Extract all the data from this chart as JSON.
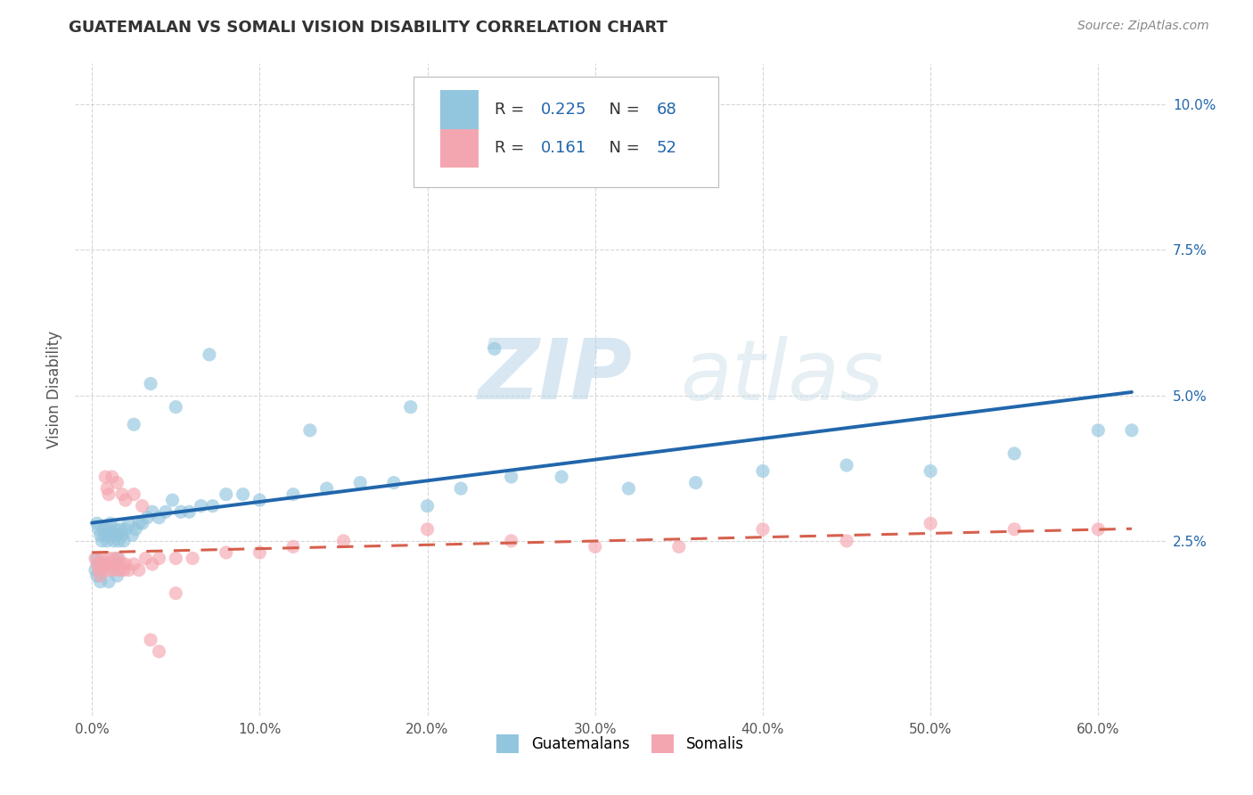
{
  "title": "GUATEMALAN VS SOMALI VISION DISABILITY CORRELATION CHART",
  "source": "Source: ZipAtlas.com",
  "ylabel": "Vision Disability",
  "xlim": [
    0.0,
    0.62
  ],
  "ylim": [
    -0.005,
    0.107
  ],
  "xtick_vals": [
    0.0,
    0.1,
    0.2,
    0.3,
    0.4,
    0.5,
    0.6
  ],
  "ytick_vals": [
    0.025,
    0.05,
    0.075,
    0.1
  ],
  "blue_color": "#92c5de",
  "pink_color": "#f4a6b0",
  "blue_line_color": "#2166ac",
  "pink_line_color": "#d6604d",
  "R_blue": "0.225",
  "N_blue": "68",
  "R_pink": "0.161",
  "N_pink": "52",
  "stat_color": "#2166ac",
  "watermark_zip": "ZIP",
  "watermark_atlas": "atlas",
  "title_fontsize": 13,
  "source_fontsize": 10,
  "tick_fontsize": 11,
  "legend_fontsize": 13,
  "gx": [
    0.003,
    0.004,
    0.005,
    0.006,
    0.007,
    0.008,
    0.009,
    0.01,
    0.011,
    0.012,
    0.013,
    0.014,
    0.015,
    0.016,
    0.017,
    0.018,
    0.019,
    0.02,
    0.022,
    0.024,
    0.026,
    0.028,
    0.03,
    0.033,
    0.036,
    0.04,
    0.044,
    0.048,
    0.053,
    0.058,
    0.065,
    0.072,
    0.08,
    0.09,
    0.1,
    0.12,
    0.14,
    0.16,
    0.18,
    0.2,
    0.22,
    0.25,
    0.28,
    0.32,
    0.36,
    0.4,
    0.45,
    0.5,
    0.55,
    0.6,
    0.62,
    0.24,
    0.19,
    0.13,
    0.07,
    0.05,
    0.035,
    0.025,
    0.015,
    0.008,
    0.006,
    0.004,
    0.003,
    0.002,
    0.003,
    0.005,
    0.01,
    0.015
  ],
  "gy": [
    0.028,
    0.027,
    0.026,
    0.025,
    0.027,
    0.026,
    0.025,
    0.027,
    0.028,
    0.026,
    0.025,
    0.027,
    0.026,
    0.025,
    0.027,
    0.026,
    0.025,
    0.027,
    0.028,
    0.026,
    0.027,
    0.028,
    0.028,
    0.029,
    0.03,
    0.029,
    0.03,
    0.032,
    0.03,
    0.03,
    0.031,
    0.031,
    0.033,
    0.033,
    0.032,
    0.033,
    0.034,
    0.035,
    0.035,
    0.031,
    0.034,
    0.036,
    0.036,
    0.034,
    0.035,
    0.037,
    0.038,
    0.037,
    0.04,
    0.044,
    0.044,
    0.058,
    0.048,
    0.044,
    0.057,
    0.048,
    0.052,
    0.045,
    0.022,
    0.021,
    0.02,
    0.021,
    0.022,
    0.02,
    0.019,
    0.018,
    0.018,
    0.019
  ],
  "sx": [
    0.002,
    0.003,
    0.004,
    0.005,
    0.006,
    0.007,
    0.008,
    0.009,
    0.01,
    0.011,
    0.012,
    0.013,
    0.014,
    0.015,
    0.016,
    0.017,
    0.018,
    0.019,
    0.02,
    0.022,
    0.025,
    0.028,
    0.032,
    0.036,
    0.04,
    0.05,
    0.06,
    0.08,
    0.1,
    0.12,
    0.15,
    0.2,
    0.25,
    0.3,
    0.35,
    0.4,
    0.45,
    0.5,
    0.55,
    0.6,
    0.008,
    0.009,
    0.01,
    0.012,
    0.015,
    0.018,
    0.02,
    0.025,
    0.03,
    0.035,
    0.04,
    0.05
  ],
  "sy": [
    0.022,
    0.021,
    0.02,
    0.019,
    0.022,
    0.021,
    0.02,
    0.021,
    0.022,
    0.02,
    0.021,
    0.022,
    0.02,
    0.021,
    0.022,
    0.02,
    0.021,
    0.02,
    0.021,
    0.02,
    0.021,
    0.02,
    0.022,
    0.021,
    0.022,
    0.022,
    0.022,
    0.023,
    0.023,
    0.024,
    0.025,
    0.027,
    0.025,
    0.024,
    0.024,
    0.027,
    0.025,
    0.028,
    0.027,
    0.027,
    0.036,
    0.034,
    0.033,
    0.036,
    0.035,
    0.033,
    0.032,
    0.033,
    0.031,
    0.008,
    0.006,
    0.016
  ]
}
